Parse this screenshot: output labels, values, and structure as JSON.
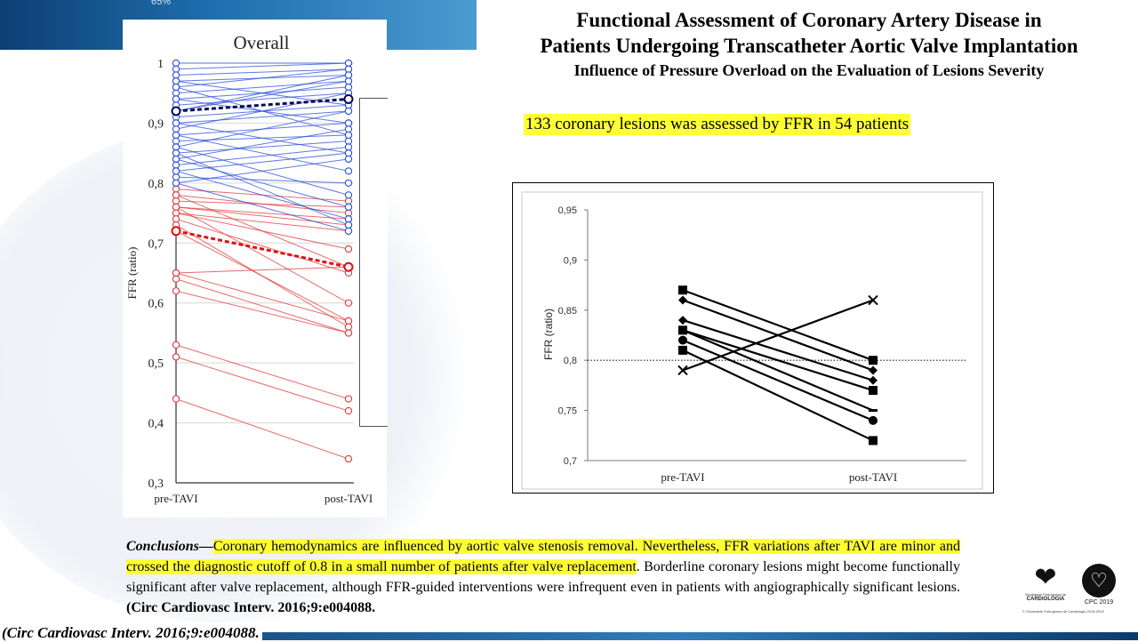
{
  "header": {
    "banner_text": "65%",
    "title_line1": "Functional Assessment of Coronary Artery Disease in",
    "title_line2": "Patients Undergoing Transcatheter Aortic Valve Implantation",
    "subtitle": "Influence of Pressure Overload on the Evaluation of Lesions Severity"
  },
  "highlight": "133 coronary lesions was assessed by FFR in 54 patients",
  "colors": {
    "blue_series": "#2a4fd8",
    "red_series": "#e03a3a",
    "highlight": "#ffff33",
    "banner": "#1f6fae"
  },
  "chart_data": [
    {
      "type": "line",
      "title": "Overall",
      "xlabel": "",
      "ylabel": "FFR (ratio)",
      "categories": [
        "pre-TAVI",
        "post-TAVI"
      ],
      "ylim": [
        0.3,
        1.0
      ],
      "yticks": [
        "0,3",
        "0,4",
        "0,5",
        "0,6",
        "0,7",
        "0,8",
        "0,9",
        "1"
      ],
      "grid": true,
      "blue_series": {
        "mean": [
          0.92,
          0.94
        ],
        "pairs": [
          [
            1.0,
            1.0
          ],
          [
            0.99,
            1.0
          ],
          [
            0.98,
            0.99
          ],
          [
            0.97,
            0.98
          ],
          [
            0.96,
            0.99
          ],
          [
            0.95,
            0.97
          ],
          [
            0.94,
            0.96
          ],
          [
            0.93,
            0.95
          ],
          [
            0.92,
            0.97
          ],
          [
            0.91,
            0.93
          ],
          [
            0.9,
            0.92
          ],
          [
            0.89,
            0.95
          ],
          [
            0.88,
            0.9
          ],
          [
            0.87,
            0.88
          ],
          [
            0.86,
            0.92
          ],
          [
            0.85,
            0.87
          ],
          [
            0.84,
            0.89
          ],
          [
            0.83,
            0.86
          ],
          [
            0.82,
            0.85
          ],
          [
            0.81,
            0.8
          ],
          [
            0.8,
            0.84
          ],
          [
            0.97,
            0.93
          ],
          [
            0.94,
            0.9
          ],
          [
            0.9,
            0.85
          ],
          [
            0.88,
            0.82
          ],
          [
            0.86,
            0.78
          ],
          [
            0.84,
            0.76
          ],
          [
            0.82,
            0.74
          ],
          [
            0.96,
            0.88
          ],
          [
            0.92,
            0.98
          ],
          [
            0.85,
            0.73
          ],
          [
            0.8,
            0.72
          ]
        ]
      },
      "red_series": {
        "mean": [
          0.72,
          0.66
        ],
        "pairs": [
          [
            0.79,
            0.77
          ],
          [
            0.78,
            0.75
          ],
          [
            0.77,
            0.76
          ],
          [
            0.76,
            0.74
          ],
          [
            0.76,
            0.73
          ],
          [
            0.75,
            0.72
          ],
          [
            0.75,
            0.69
          ],
          [
            0.78,
            0.66
          ],
          [
            0.74,
            0.65
          ],
          [
            0.72,
            0.57
          ],
          [
            0.65,
            0.66
          ],
          [
            0.64,
            0.55
          ],
          [
            0.62,
            0.55
          ],
          [
            0.65,
            0.57
          ],
          [
            0.53,
            0.44
          ],
          [
            0.51,
            0.42
          ],
          [
            0.44,
            0.34
          ],
          [
            0.76,
            0.6
          ],
          [
            0.73,
            0.56
          ]
        ]
      }
    },
    {
      "type": "line",
      "title": "",
      "xlabel": "",
      "ylabel": "FFR (ratio)",
      "categories": [
        "pre-TAVI",
        "post-TAVI"
      ],
      "ylim": [
        0.7,
        0.95
      ],
      "yticks": [
        "0,7",
        "0,75",
        "0,8",
        "0,85",
        "0,9",
        "0,95"
      ],
      "cutoff": 0.8,
      "series": [
        {
          "marker": "square",
          "values": [
            0.87,
            0.8
          ]
        },
        {
          "marker": "diamond",
          "values": [
            0.86,
            0.79
          ]
        },
        {
          "marker": "diamond",
          "values": [
            0.84,
            0.78
          ]
        },
        {
          "marker": "square",
          "values": [
            0.83,
            0.77
          ]
        },
        {
          "marker": "dash",
          "values": [
            0.83,
            0.75
          ]
        },
        {
          "marker": "circle",
          "values": [
            0.82,
            0.74
          ]
        },
        {
          "marker": "square",
          "values": [
            0.81,
            0.72
          ]
        },
        {
          "marker": "x",
          "values": [
            0.79,
            0.86
          ]
        }
      ]
    }
  ],
  "conclusions": {
    "lead": "Conclusions—",
    "highlighted": "Coronary hemodynamics are influenced by aortic valve stenosis removal. Nevertheless, FFR variations after TAVI are minor and crossed the diagnostic cutoff of 0.8 in a small number of patients after valve replacement",
    "rest": ". Borderline coronary lesions might become functionally significant after valve replacement, although FFR-guided interventions were infrequent even in patients with angiographically significant lesions.",
    "citation": "(Circ Cardiovasc Interv. 2016;9:e004088."
  },
  "footer": {
    "citation": "(Circ Cardiovasc Interv. 2016;9:e004088.",
    "logo_spc_line1": "Sociedade Portuguesa de",
    "logo_spc_line2": "CARDIOLOGIA",
    "logo_cpc": "CPC 2019",
    "logo_footnote": "© Sociedade Portuguesa de Cardiologia 2018-2019"
  }
}
